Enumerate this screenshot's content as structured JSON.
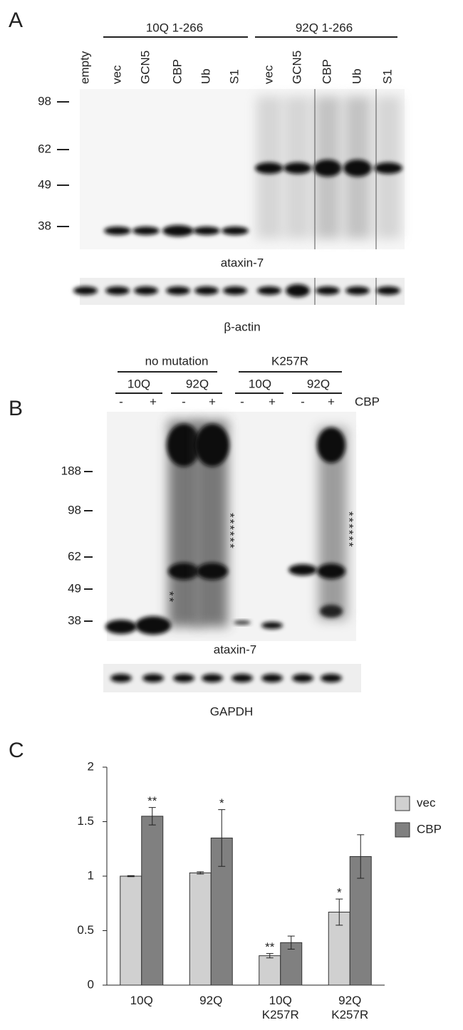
{
  "panel_a": {
    "label": "A",
    "groups": [
      "10Q 1-266",
      "92Q 1-266"
    ],
    "lanes": [
      "empty",
      "vec",
      "GCN5",
      "CBP",
      "Ub",
      "S1",
      "vec",
      "GCN5",
      "CBP",
      "Ub",
      "S1"
    ],
    "markers": [
      "98",
      "62",
      "49",
      "38"
    ],
    "blot_label": "ataxin-7",
    "loading_label": "β-actin"
  },
  "panel_b": {
    "label": "B",
    "groups": [
      "no mutation",
      "K257R"
    ],
    "subgroups": [
      "10Q",
      "92Q",
      "10Q",
      "92Q"
    ],
    "signs": [
      "-",
      "+",
      "-",
      "+",
      "-",
      "+",
      "-",
      "+"
    ],
    "treatment": "CBP",
    "markers": [
      "188",
      "98",
      "62",
      "49",
      "38"
    ],
    "asterisks": [
      "******",
      "******",
      "**"
    ],
    "blot_label": "ataxin-7",
    "loading_label": "GAPDH"
  },
  "chart_data": {
    "type": "bar",
    "label": "C",
    "categories": [
      "10Q",
      "92Q",
      "10Q K257R",
      "92Q K257R"
    ],
    "series": [
      {
        "name": "vec",
        "color": "#d0d0d0",
        "values": [
          1.0,
          1.03,
          0.27,
          0.67
        ],
        "errors": [
          0.005,
          0.01,
          0.02,
          0.12
        ],
        "significance": [
          null,
          null,
          "**",
          "*"
        ]
      },
      {
        "name": "CBP",
        "color": "#808080",
        "values": [
          1.55,
          1.35,
          0.39,
          1.18
        ],
        "errors": [
          0.08,
          0.26,
          0.06,
          0.2
        ],
        "significance": [
          "**",
          "*",
          null,
          null
        ]
      }
    ],
    "ylim": [
      0,
      2
    ],
    "yticks": [
      0,
      0.5,
      1,
      1.5,
      2
    ]
  }
}
